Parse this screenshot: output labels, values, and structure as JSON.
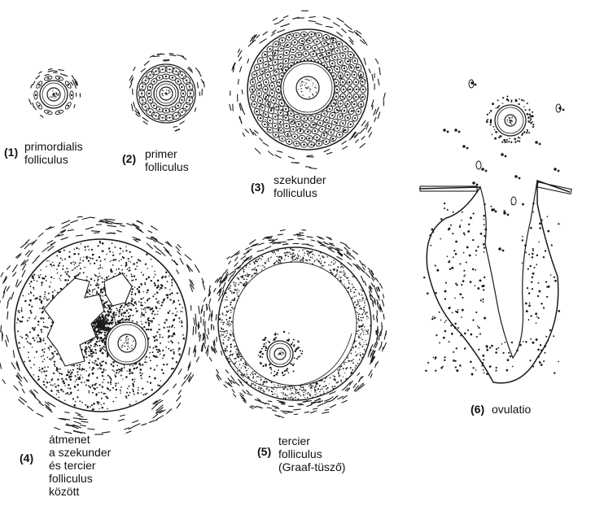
{
  "stages": [
    {
      "number": "(1)",
      "lines": [
        "primordialis",
        "folliculus"
      ]
    },
    {
      "number": "(2)",
      "lines": [
        "primer",
        "folliculus"
      ]
    },
    {
      "number": "(3)",
      "lines": [
        "szekunder",
        "folliculus"
      ]
    },
    {
      "number": "(4)",
      "lines": [
        "átmenet",
        "a szekunder",
        "és tercier",
        "folliculus",
        "között"
      ]
    },
    {
      "number": "(5)",
      "lines": [
        "tercier",
        "folliculus",
        "(Graaf-tüsző)"
      ]
    },
    {
      "number": "(6)",
      "lines": [
        "ovulatio"
      ]
    }
  ],
  "colors": {
    "ink": "#1a1a1a",
    "background": "#ffffff"
  }
}
